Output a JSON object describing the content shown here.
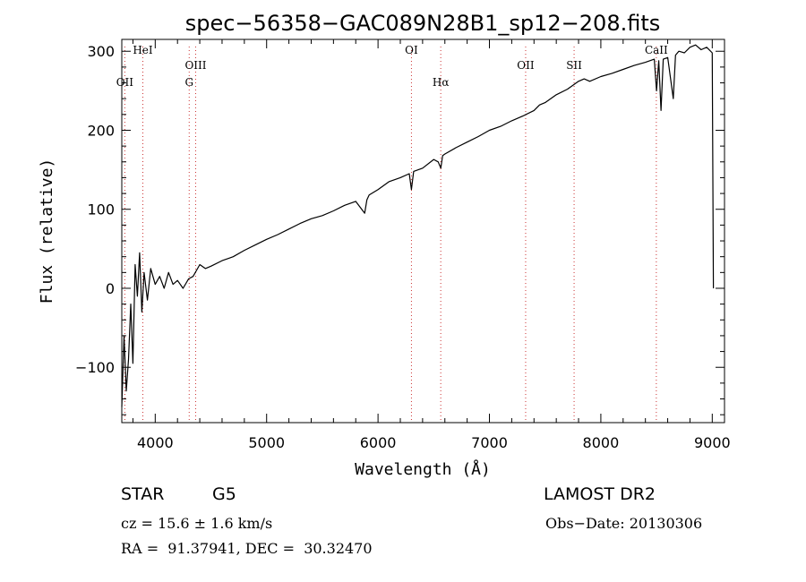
{
  "chart_data": {
    "type": "line",
    "title": "spec−56358−GAC089N28B1_sp12−208.fits",
    "xlabel": "Wavelength (Å)",
    "ylabel": "Flux (relative)",
    "xlim": [
      3700,
      9110
    ],
    "ylim": [
      -170,
      315
    ],
    "xticks": [
      4000,
      5000,
      6000,
      7000,
      8000,
      9000
    ],
    "yticks": [
      -100,
      0,
      100,
      200,
      300
    ],
    "grid": false,
    "line_color": "#000000",
    "marker_color": "#cc3333",
    "series": [
      {
        "x": [
          3700,
          3720,
          3740,
          3760,
          3780,
          3800,
          3820,
          3840,
          3860,
          3880,
          3900,
          3930,
          3960,
          4000,
          4040,
          4080,
          4120,
          4160,
          4200,
          4250,
          4300,
          4340,
          4400,
          4450,
          4500,
          4600,
          4700,
          4800,
          4900,
          5000,
          5100,
          5200,
          5300,
          5400,
          5500,
          5600,
          5700,
          5800,
          5880,
          5900,
          5920,
          6000,
          6100,
          6200,
          6280,
          6300,
          6320,
          6400,
          6500,
          6540,
          6563,
          6580,
          6600,
          6700,
          6800,
          6900,
          7000,
          7100,
          7200,
          7300,
          7400,
          7450,
          7500,
          7600,
          7700,
          7800,
          7850,
          7900,
          8000,
          8100,
          8200,
          8300,
          8400,
          8480,
          8500,
          8520,
          8540,
          8560,
          8600,
          8650,
          8670,
          8700,
          8750,
          8800,
          8850,
          8900,
          8950,
          9000,
          9010
        ],
        "y": [
          -150,
          -60,
          -130,
          -90,
          -20,
          -95,
          30,
          -10,
          45,
          -30,
          20,
          -15,
          25,
          5,
          15,
          0,
          20,
          5,
          10,
          0,
          12,
          15,
          30,
          25,
          28,
          35,
          40,
          48,
          55,
          62,
          68,
          75,
          82,
          88,
          92,
          98,
          105,
          110,
          95,
          112,
          118,
          125,
          135,
          140,
          145,
          125,
          148,
          152,
          163,
          160,
          152,
          168,
          170,
          178,
          185,
          192,
          200,
          205,
          212,
          218,
          225,
          232,
          235,
          245,
          252,
          262,
          265,
          262,
          268,
          272,
          277,
          282,
          286,
          290,
          250,
          288,
          225,
          290,
          292,
          240,
          295,
          300,
          298,
          305,
          308,
          302,
          305,
          298,
          0
        ]
      }
    ],
    "reference_lines": [
      {
        "label": "OII",
        "x": 3727,
        "row": 2
      },
      {
        "label": "HeI",
        "x": 3889,
        "row": 0
      },
      {
        "label": "G",
        "x": 4305,
        "row": 2
      },
      {
        "label": "OIII",
        "x": 4363,
        "row": 1
      },
      {
        "label": "OI",
        "x": 6300,
        "row": 0
      },
      {
        "label": "Hα",
        "x": 6563,
        "row": 2
      },
      {
        "label": "OII",
        "x": 7325,
        "row": 1
      },
      {
        "label": "SII",
        "x": 7760,
        "row": 1
      },
      {
        "label": "CaII",
        "x": 8498,
        "row": 0
      }
    ]
  },
  "info": {
    "class_label": "STAR",
    "subclass_label": "G5",
    "survey": "LAMOST DR2",
    "redshift_text": "cz = 15.6 ± 1.6 km/s",
    "obs_date_text": "Obs−Date: 20130306",
    "coords_text": "RA =  91.37941, DEC =  30.32470"
  }
}
